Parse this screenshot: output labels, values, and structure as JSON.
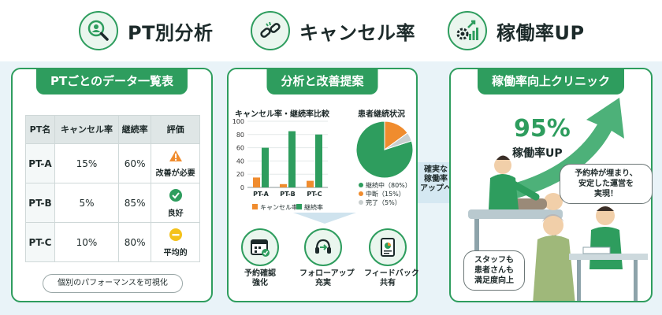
{
  "header": {
    "items": [
      {
        "label": "PT別分析",
        "icon": "person-magnifier-icon"
      },
      {
        "label": "キャンセル率",
        "icon": "broken-link-icon"
      },
      {
        "label": "稼働率UP",
        "icon": "gears-up-arrow-icon"
      }
    ]
  },
  "left_panel": {
    "title": "PTごとのデータ一覧表",
    "columns": [
      "PT名",
      "キャンセル率",
      "継続率",
      "評価"
    ],
    "rows": [
      {
        "name": "PT-A",
        "cancel": "15%",
        "continue": "60%",
        "eval": "改善が必要",
        "eval_icon": "warning-icon",
        "eval_color": "#f08c2e"
      },
      {
        "name": "PT-B",
        "cancel": "5%",
        "continue": "85%",
        "eval": "良好",
        "eval_icon": "check-icon",
        "eval_color": "#2e9d5e"
      },
      {
        "name": "PT-C",
        "cancel": "10%",
        "continue": "80%",
        "eval": "平均的",
        "eval_icon": "minus-icon",
        "eval_color": "#f4c21b"
      }
    ],
    "footer": "個別のパフォーマンスを可視化"
  },
  "middle_panel": {
    "title": "分析と改善提案",
    "bar_title": "キャンセル率・継続率比較",
    "pie_title": "患者継続状況",
    "actions": [
      {
        "label_1": "予約確認",
        "label_2": "強化",
        "icon": "calendar-check-icon"
      },
      {
        "label_1": "フォローアップ",
        "label_2": "充実",
        "icon": "headset-icon"
      },
      {
        "label_1": "フィードバック",
        "label_2": "共有",
        "icon": "tablet-report-icon"
      }
    ]
  },
  "connector": {
    "line_1": "確実な",
    "line_2": "稼働率",
    "line_3": "アップへ"
  },
  "right_panel": {
    "title": "稼働率向上クリニック",
    "big_value": "95%",
    "big_label": "稼働率UP",
    "bubble_top": {
      "line_1": "予約枠が埋まり、",
      "line_2": "安定した運営を",
      "line_3": "実現！"
    },
    "bubble_bottom": {
      "line_1": "スタッフも",
      "line_2": "患者さんも",
      "line_3": "満足度向上"
    }
  },
  "colors": {
    "green": "#2e9d5e",
    "orange": "#f08c2e",
    "gray": "#c9cfcf",
    "yellow": "#f4c21b"
  },
  "chart_data": [
    {
      "type": "bar",
      "title": "キャンセル率・継続率比較",
      "categories": [
        "PT-A",
        "PT-B",
        "PT-C"
      ],
      "series": [
        {
          "name": "キャンセル率",
          "values": [
            15,
            5,
            10
          ],
          "color": "#f08c2e"
        },
        {
          "name": "継続率",
          "values": [
            60,
            85,
            80
          ],
          "color": "#2e9d5e"
        }
      ],
      "ylim": [
        0,
        100
      ],
      "yticks": [
        0,
        20,
        40,
        60,
        80,
        100
      ],
      "legend": "bottom"
    },
    {
      "type": "pie",
      "title": "患者継続状況",
      "slices": [
        {
          "label": "継続中（80%）",
          "value": 80,
          "color": "#2e9d5e"
        },
        {
          "label": "中断（15%）",
          "value": 15,
          "color": "#f08c2e"
        },
        {
          "label": "完了（5%）",
          "value": 5,
          "color": "#c9cfcf"
        }
      ],
      "legend": "bottom"
    }
  ]
}
